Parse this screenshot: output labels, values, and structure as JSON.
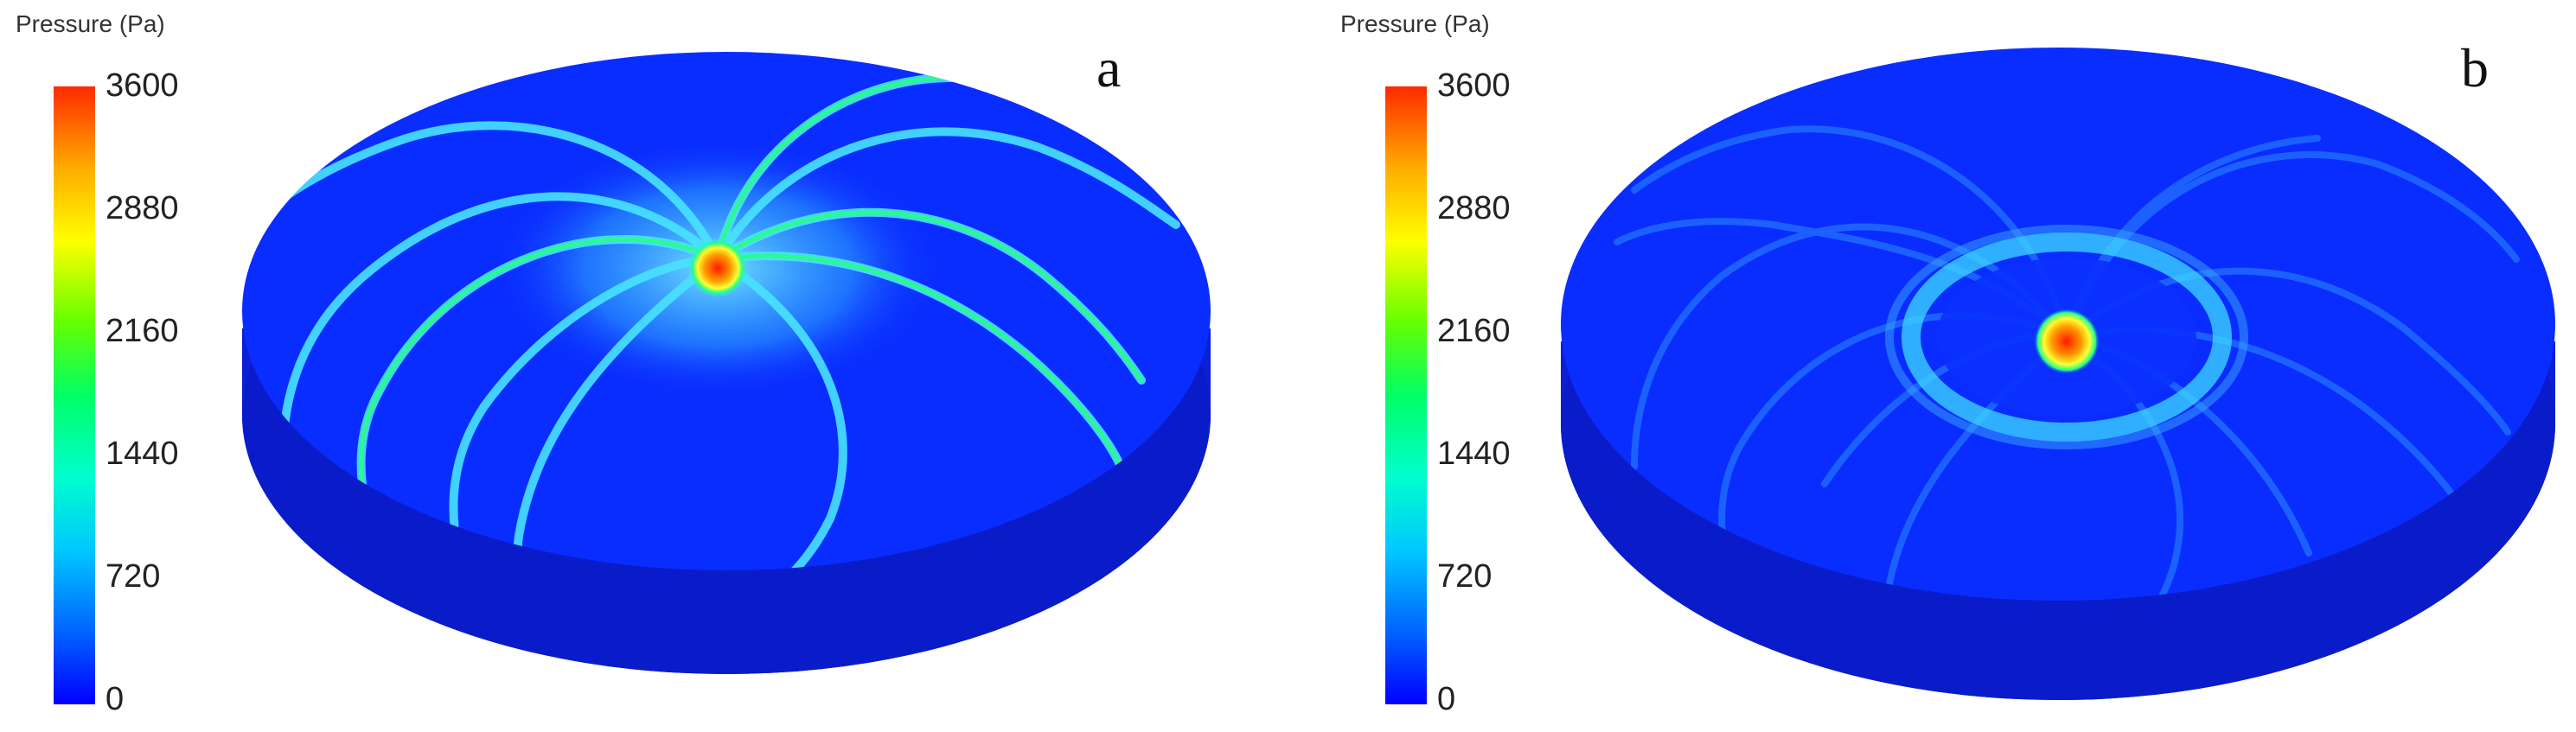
{
  "colorbar": {
    "title": "Pressure (Pa)",
    "ticks": [
      "3600",
      "2880",
      "2160",
      "1440",
      "720",
      "0"
    ]
  },
  "panels": [
    {
      "letter": "a",
      "pattern": "spiral-streaks"
    },
    {
      "letter": "b",
      "pattern": "rings-with-spiral"
    }
  ],
  "colors": {
    "background_blue": "#0a2dff",
    "side_blue": "#0b1fd6",
    "streak_cyan": "#4fe9ff",
    "streak_green": "#21ff7d",
    "hot_red": "#ff1a00",
    "hot_orange": "#ffb000"
  }
}
